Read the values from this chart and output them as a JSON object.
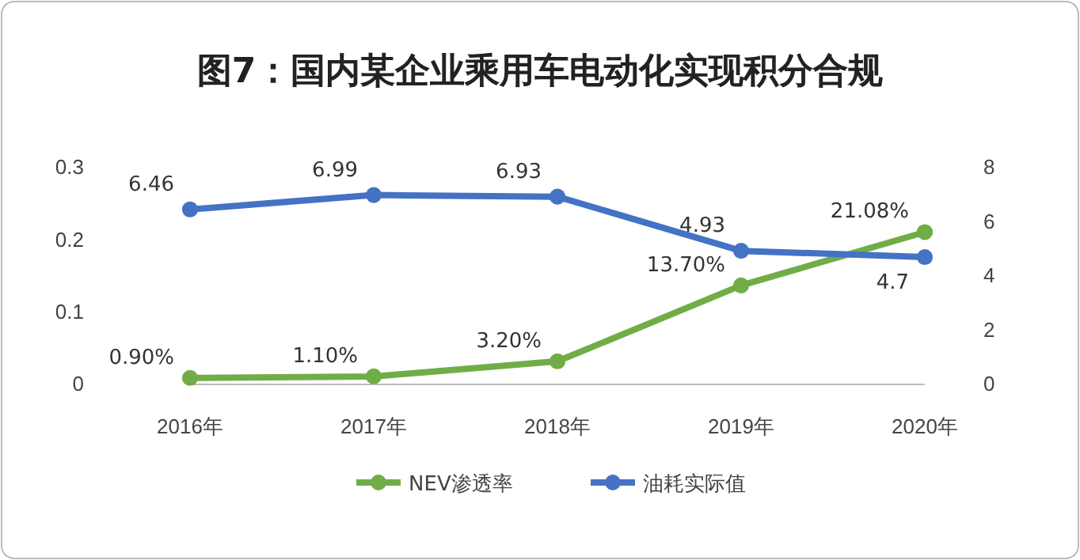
{
  "chart_data": {
    "type": "line",
    "title": "图7：国内某企业乘用车电动化实现积分合规",
    "categories": [
      "2016年",
      "2017年",
      "2018年",
      "2019年",
      "2020年"
    ],
    "series": [
      {
        "name": "NEV渗透率",
        "color": "#70ad47",
        "values": [
          0.009,
          0.011,
          0.032,
          0.137,
          0.2108
        ],
        "value_labels": [
          "0.90%",
          "1.10%",
          "3.20%",
          "13.70%",
          "21.08%"
        ]
      },
      {
        "name": "油耗实际值",
        "color": "#4472c4",
        "axis": "y2",
        "values": [
          6.46,
          6.99,
          6.93,
          4.93,
          4.7
        ],
        "value_labels": [
          "6.46",
          "6.99",
          "6.93",
          "4.93",
          "4.7"
        ]
      }
    ],
    "ylim": [
      0,
      0.3
    ],
    "yticks": [
      0,
      0.1,
      0.2,
      0.3
    ],
    "y2lim": [
      0,
      8
    ],
    "y2ticks": [
      0,
      2,
      4,
      6,
      8
    ],
    "grid": false,
    "legend": "bottom",
    "marker": "circle",
    "line_style": "solid"
  }
}
